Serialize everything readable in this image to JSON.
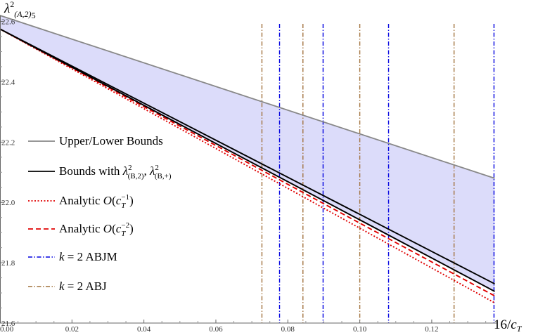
{
  "chart_data": {
    "type": "line",
    "xlabel": "16/c_T",
    "ylabel": "λ²_(A,2)5",
    "xlim": [
      0,
      0.138
    ],
    "ylim": [
      21.6,
      22.62
    ],
    "x_ticks": [
      "0.00",
      "0.02",
      "0.04",
      "0.06",
      "0.08",
      "0.10",
      "0.12"
    ],
    "y_ticks": [
      "21.6",
      "21.8",
      "22.0",
      "22.2",
      "22.4",
      "22.6"
    ],
    "x_tick_values": [
      0,
      0.02,
      0.04,
      0.06,
      0.08,
      0.1,
      0.12
    ],
    "y_tick_values": [
      21.6,
      21.8,
      22.0,
      22.2,
      22.4,
      22.6
    ],
    "shaded_region": {
      "between": [
        "Upper/Lower Bounds (upper)",
        "Upper/Lower Bounds (lower)"
      ],
      "color": "#dcdcfa"
    },
    "series": [
      {
        "name": "Upper/Lower Bounds",
        "role": "upper",
        "style": "solid",
        "color": "#888888",
        "x": [
          0,
          0.1375
        ],
        "y": [
          22.62,
          22.08
        ]
      },
      {
        "name": "Upper/Lower Bounds",
        "role": "lower",
        "style": "solid",
        "color": "#888888",
        "x": [
          0,
          0.1375
        ],
        "y": [
          22.575,
          21.705
        ]
      },
      {
        "name": "Bounds with λ²(B,2), λ²(B,+)",
        "role": "upper",
        "style": "solid",
        "color": "#000000",
        "x": [
          0,
          0.1375
        ],
        "y": [
          22.575,
          21.73
        ]
      },
      {
        "name": "Bounds with λ²(B,2), λ²(B,+)",
        "role": "lower",
        "style": "solid",
        "color": "#000000",
        "x": [
          0,
          0.1375
        ],
        "y": [
          22.575,
          21.705
        ]
      },
      {
        "name": "Analytic O(c_T^-1)",
        "style": "dotted",
        "color": "#e00000",
        "x": [
          0,
          0.1375
        ],
        "y": [
          22.575,
          21.667
        ]
      },
      {
        "name": "Analytic O(c_T^-2)",
        "style": "dashed",
        "color": "#e00000",
        "x": [
          0,
          0.1375
        ],
        "y": [
          22.575,
          21.69
        ]
      },
      {
        "name": "k = 2 ABJM",
        "style": "dashdot",
        "color": "#0000e0",
        "orientation": "vertical",
        "x": [
          0.0777,
          0.0898,
          0.108,
          0.1373
        ]
      },
      {
        "name": "k = 2 ABJ",
        "style": "dashdot",
        "color": "#a0703a",
        "orientation": "vertical",
        "x": [
          0.0728,
          0.0842,
          0.1,
          0.1262
        ]
      }
    ],
    "legend": {
      "placement": "left-center",
      "entries": [
        {
          "label": "Upper/Lower Bounds",
          "color": "#888888",
          "style": "solid"
        },
        {
          "label": "Bounds with λ²(B,2), λ²(B,+)",
          "color": "#000000",
          "style": "solid"
        },
        {
          "label": "Analytic O(c_T^-1)",
          "color": "#e00000",
          "style": "dotted"
        },
        {
          "label": "Analytic O(c_T^-2)",
          "color": "#e00000",
          "style": "dashed"
        },
        {
          "label": "k = 2 ABJM",
          "color": "#0000e0",
          "style": "dashdot"
        },
        {
          "label": "k = 2 ABJ",
          "color": "#a0703a",
          "style": "dashdot"
        }
      ]
    }
  }
}
